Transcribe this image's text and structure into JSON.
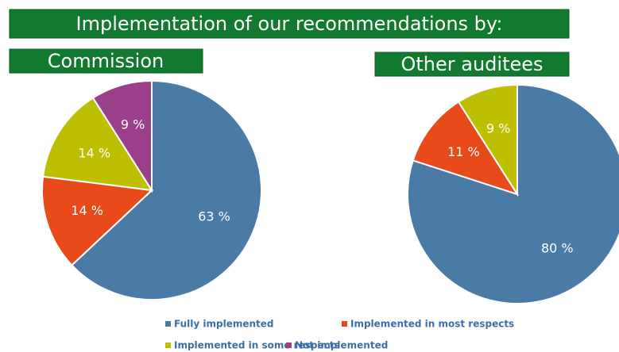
{
  "title": "Implementation of our recommendations by:",
  "legend": {
    "labels": [
      "Fully implemented",
      "Implemented in most respects",
      "Implemented in some respects",
      "Not implemented"
    ],
    "colors": [
      "#4a7aa6",
      "#e84a1a",
      "#bcc000",
      "#9b3f8a"
    ]
  },
  "chart_data": [
    {
      "type": "pie",
      "title": "Commission",
      "values": [
        63,
        14,
        14,
        9
      ],
      "value_labels": [
        "63 %",
        "14 %",
        "14 %",
        "9 %"
      ]
    },
    {
      "type": "pie",
      "title": "Other auditees",
      "values": [
        80,
        11,
        9
      ],
      "value_labels": [
        "80 %",
        "11 %",
        "9 %"
      ]
    }
  ]
}
